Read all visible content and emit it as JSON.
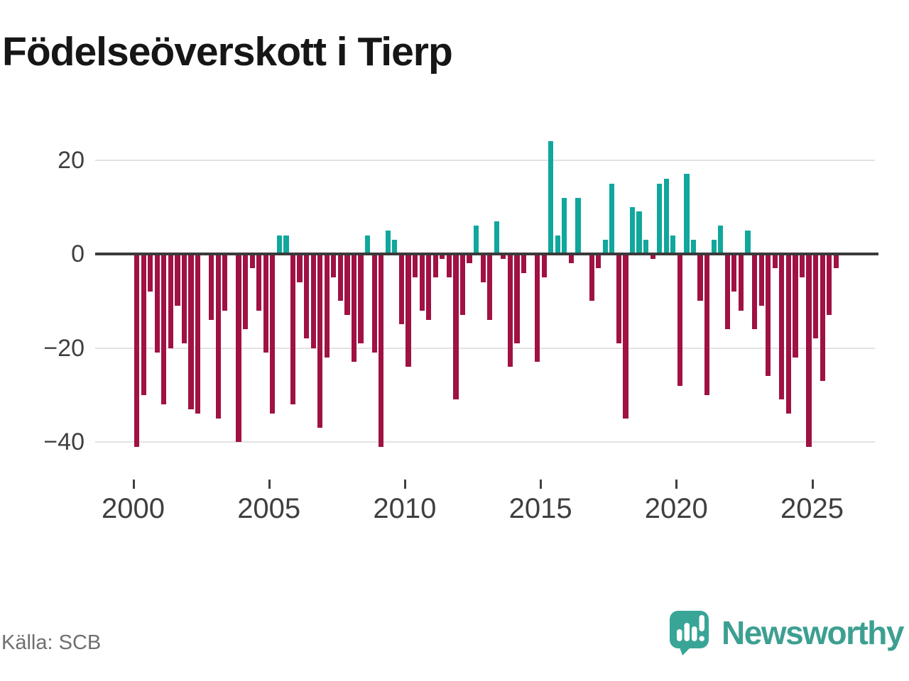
{
  "title": "Födelseöverskott i Tierp",
  "source": "Källa: SCB",
  "logo_text": "Newsworthy",
  "colors": {
    "positive_bar": "#10a79c",
    "negative_bar": "#a01144",
    "axis_line": "#3a3a3a",
    "gridline": "#e3e3e3",
    "tick_label": "#3f3f3f",
    "source_text": "#6f6f6f",
    "brand_teal": "#38a597"
  },
  "chart_data": {
    "type": "bar",
    "title": "Födelseöverskott i Tierp",
    "xlabel": "",
    "ylabel": "",
    "frequency": "quarterly",
    "start": "2000 Q1",
    "end": "2025 Q4",
    "ylim": [
      -45,
      24
    ],
    "grid": "horizontal",
    "legend": "none",
    "yticks": [
      {
        "label": "20",
        "value": 20
      },
      {
        "label": "0",
        "value": 0
      },
      {
        "label": "−20",
        "value": -20
      },
      {
        "label": "−40",
        "value": -40
      }
    ],
    "xticks": [
      {
        "label": "2000",
        "year": 2000
      },
      {
        "label": "2005",
        "year": 2005
      },
      {
        "label": "2010",
        "year": 2010
      },
      {
        "label": "2015",
        "year": 2015
      },
      {
        "label": "2020",
        "year": 2020
      },
      {
        "label": "2025",
        "year": 2025
      }
    ],
    "values_by_year": {
      "2000": [
        -41,
        -30,
        -8,
        -21
      ],
      "2001": [
        -32,
        -20,
        -11,
        -19
      ],
      "2002": [
        -33,
        -34,
        0,
        -14
      ],
      "2003": [
        -35,
        -12,
        0,
        -40
      ],
      "2004": [
        -16,
        -3,
        -12,
        -21
      ],
      "2005": [
        -34,
        4,
        4,
        -32
      ],
      "2006": [
        -6,
        -18,
        -20,
        -37
      ],
      "2007": [
        -22,
        -5,
        -10,
        -13
      ],
      "2008": [
        -23,
        -19,
        4,
        -21
      ],
      "2009": [
        -41,
        5,
        3,
        -15
      ],
      "2010": [
        -24,
        -5,
        -12,
        -14
      ],
      "2011": [
        -5,
        -1,
        -5,
        -31
      ],
      "2012": [
        -13,
        -2,
        6,
        -6
      ],
      "2013": [
        -14,
        7,
        -1,
        -24
      ],
      "2014": [
        -19,
        -4,
        0,
        -23
      ],
      "2015": [
        -5,
        24,
        4,
        12
      ],
      "2016": [
        -2,
        12,
        0,
        -10
      ],
      "2017": [
        -3,
        3,
        15,
        -19
      ],
      "2018": [
        -35,
        10,
        9,
        3
      ],
      "2019": [
        -1,
        15,
        16,
        4
      ],
      "2020": [
        -28,
        17,
        3,
        -10
      ],
      "2021": [
        -30,
        3,
        6,
        -16
      ],
      "2022": [
        -8,
        -12,
        5,
        -16
      ],
      "2023": [
        -11,
        -26,
        -3,
        -31
      ],
      "2024": [
        -34,
        -22,
        -5,
        -41
      ],
      "2025": [
        -18,
        -27,
        -13,
        -3
      ]
    }
  }
}
